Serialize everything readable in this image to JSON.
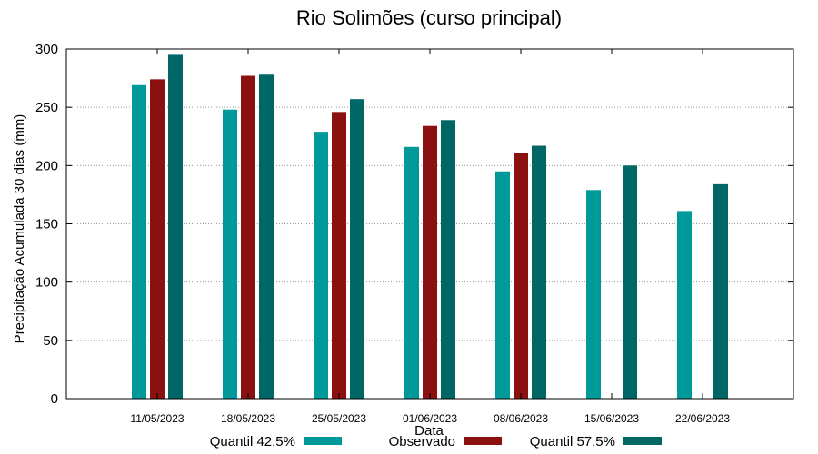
{
  "chart_data": {
    "type": "bar",
    "title": "Rio Solimões (curso principal)",
    "xlabel": "Data",
    "ylabel": "Precipitação Acumulada 30 dias (mm)",
    "ylim": [
      0,
      300
    ],
    "yticks": [
      0,
      50,
      100,
      150,
      200,
      250,
      300
    ],
    "grid": true,
    "legend_position": "bottom",
    "categories": [
      "11/05/2023",
      "18/05/2023",
      "25/05/2023",
      "01/06/2023",
      "08/06/2023",
      "15/06/2023",
      "22/06/2023"
    ],
    "series": [
      {
        "name": "Quantil 42.5%",
        "color": "#009999",
        "values": [
          269,
          248,
          229,
          216,
          195,
          179,
          161
        ]
      },
      {
        "name": "Observado",
        "color": "#8b1111",
        "values": [
          274,
          277,
          246,
          234,
          211,
          null,
          null
        ]
      },
      {
        "name": "Quantil 57.5%",
        "color": "#006666",
        "values": [
          295,
          278,
          257,
          239,
          217,
          200,
          184
        ]
      }
    ]
  }
}
